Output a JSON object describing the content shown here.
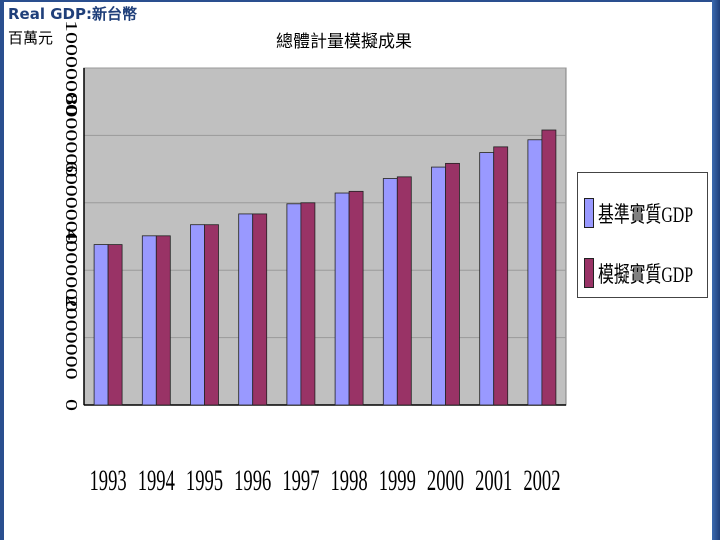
{
  "header": {
    "corner_label": "Real GDP:新台幣",
    "unit_label": "百萬元",
    "title": "總體計量模擬成果"
  },
  "chart_data": {
    "type": "bar",
    "title": "總體計量模擬成果",
    "xlabel": "",
    "ylabel": "Real GDP:新台幣 百萬元",
    "categories": [
      "1993",
      "1994",
      "1995",
      "1996",
      "1997",
      "1998",
      "1999",
      "2000",
      "2001",
      "2002"
    ],
    "series": [
      {
        "name": "基準實質GDP",
        "color": "#9999ff",
        "values": [
          4760000,
          5020000,
          5350000,
          5670000,
          5970000,
          6290000,
          6720000,
          7060000,
          7490000,
          7870000
        ]
      },
      {
        "name": "模擬實質GDP",
        "color": "#993366",
        "values": [
          4760000,
          5020000,
          5350000,
          5670000,
          6000000,
          6340000,
          6770000,
          7170000,
          7660000,
          8160000
        ]
      }
    ],
    "yticks": [
      "0",
      "2000000",
      "4000000",
      "6000000",
      "8000000",
      "10000000"
    ],
    "ylim": [
      0,
      10000000
    ],
    "grid": true,
    "legend": "right"
  },
  "colors": {
    "plot_bg": "#c0c0c0",
    "grid": "#9a9a9a",
    "frame": "#2a4f8f"
  }
}
